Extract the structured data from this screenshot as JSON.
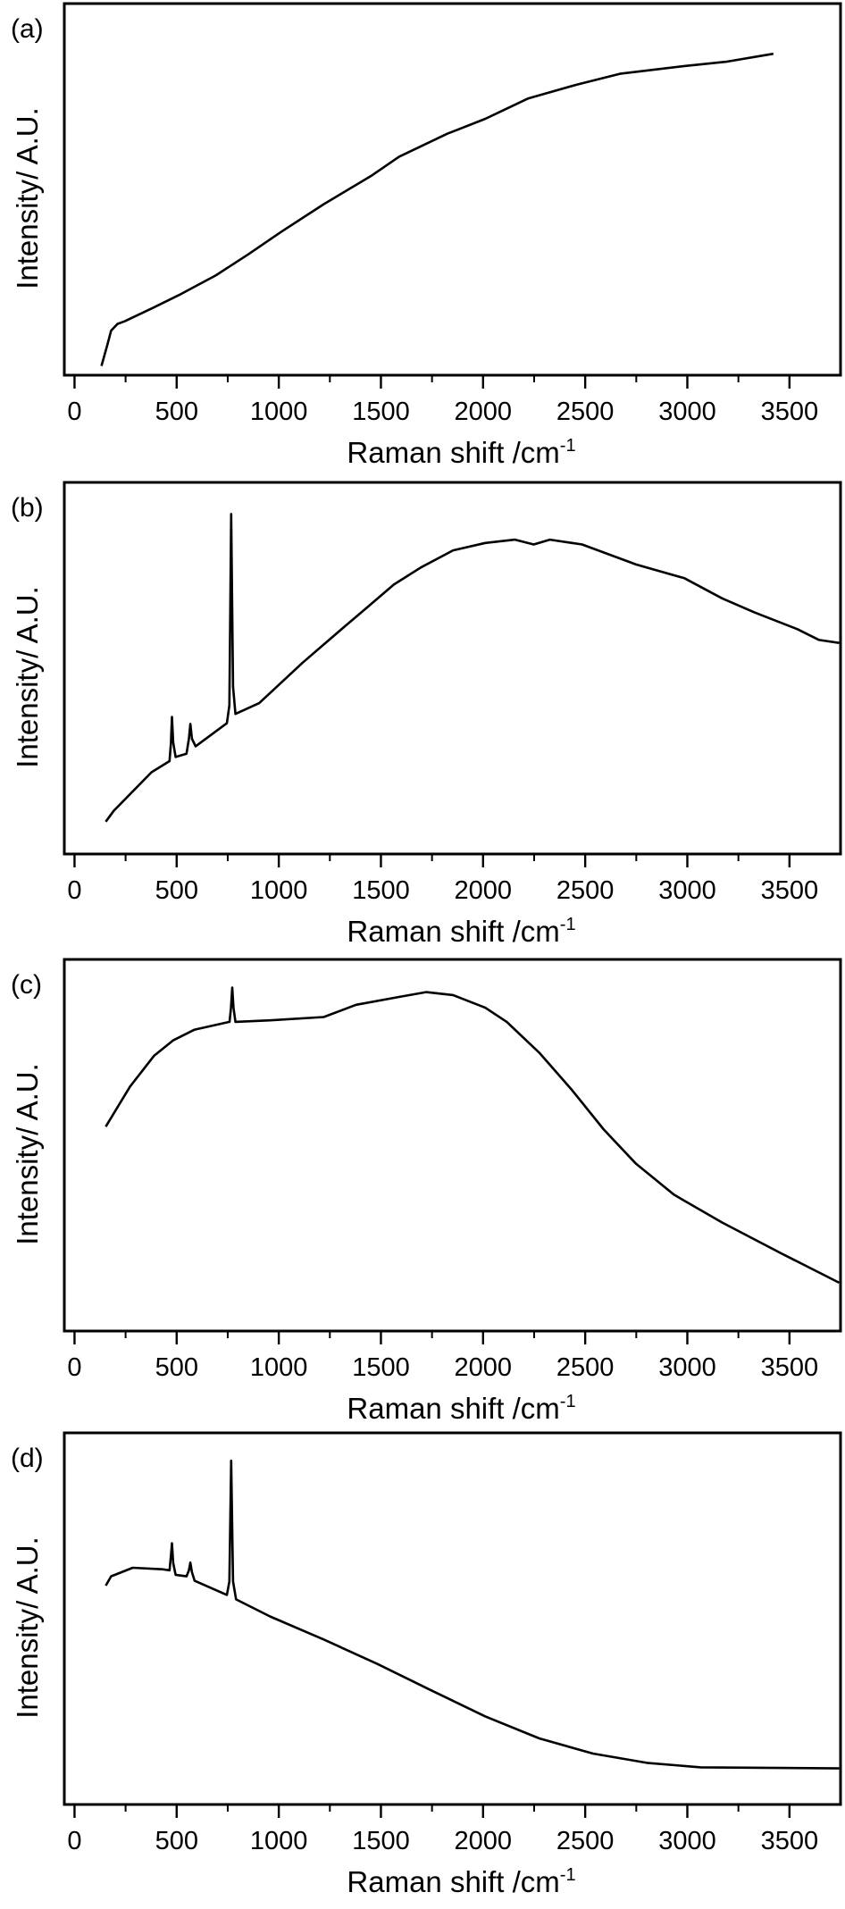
{
  "chart_data": [
    {
      "type": "line",
      "panel_label": "(a)",
      "xlabel": "Raman shift /cm",
      "xlabel_superscript": "-1",
      "ylabel": "Intensity/ A.U.",
      "xlim": [
        -50,
        3750
      ],
      "ylim": [
        0,
        1
      ],
      "xticks": [
        0,
        500,
        1000,
        1500,
        2000,
        2500,
        3000,
        3500
      ],
      "xtick_labels": [
        "0",
        "500",
        "1000",
        "1500",
        "2000",
        "2500",
        "3000",
        "3500"
      ],
      "y_ticks_shown": false,
      "grid": false,
      "line_color": "#000000",
      "x": [
        132,
        160,
        179,
        210,
        245,
        380,
        509,
        693,
        850,
        1010,
        1220,
        1457,
        1589,
        1826,
        2011,
        2222,
        2459,
        2670,
        2986,
        3197,
        3421
      ],
      "y": [
        0.025,
        0.08,
        0.12,
        0.138,
        0.145,
        0.18,
        0.215,
        0.269,
        0.325,
        0.385,
        0.46,
        0.538,
        0.588,
        0.65,
        0.69,
        0.745,
        0.782,
        0.811,
        0.832,
        0.844,
        0.865
      ]
    },
    {
      "type": "line",
      "panel_label": "(b)",
      "xlabel": "Raman shift /cm",
      "xlabel_superscript": "-1",
      "ylabel": "Intensity/ A.U.",
      "xlim": [
        -50,
        3750
      ],
      "ylim": [
        0,
        1
      ],
      "xticks": [
        0,
        500,
        1000,
        1500,
        2000,
        2500,
        3000,
        3500
      ],
      "xtick_labels": [
        "0",
        "500",
        "1000",
        "1500",
        "2000",
        "2500",
        "3000",
        "3500"
      ],
      "y_ticks_shown": false,
      "grid": false,
      "line_color": "#000000",
      "x": [
        153,
        192,
        377,
        465,
        472,
        477,
        483,
        495,
        548,
        560,
        567,
        575,
        593,
        746,
        758,
        767,
        776,
        788,
        904,
        1115,
        1326,
        1431,
        1563,
        1695,
        1853,
        2011,
        2156,
        2248,
        2327,
        2485,
        2749,
        2986,
        3170,
        3329,
        3539,
        3645,
        3743
      ],
      "y": [
        0.087,
        0.116,
        0.22,
        0.25,
        0.3,
        0.369,
        0.3,
        0.261,
        0.27,
        0.31,
        0.35,
        0.31,
        0.29,
        0.352,
        0.4,
        0.915,
        0.45,
        0.377,
        0.406,
        0.514,
        0.614,
        0.663,
        0.725,
        0.771,
        0.817,
        0.837,
        0.846,
        0.833,
        0.846,
        0.833,
        0.779,
        0.742,
        0.688,
        0.65,
        0.605,
        0.576,
        0.568
      ]
    },
    {
      "type": "line",
      "panel_label": "(c)",
      "xlabel": "Raman shift /cm",
      "xlabel_superscript": "-1",
      "ylabel": "Intensity/ A.U.",
      "xlim": [
        -50,
        3750
      ],
      "ylim": [
        0,
        1
      ],
      "xticks": [
        0,
        500,
        1000,
        1500,
        2000,
        2500,
        3000,
        3500
      ],
      "xtick_labels": [
        "0",
        "500",
        "1000",
        "1500",
        "2000",
        "2500",
        "3000",
        "3500"
      ],
      "y_ticks_shown": false,
      "grid": false,
      "line_color": "#000000",
      "x": [
        153,
        272,
        390,
        482,
        588,
        759,
        766,
        772,
        778,
        788,
        957,
        1220,
        1378,
        1589,
        1721,
        1853,
        2011,
        2116,
        2275,
        2433,
        2591,
        2749,
        2934,
        3170,
        3460,
        3743
      ],
      "y": [
        0.55,
        0.658,
        0.741,
        0.782,
        0.811,
        0.832,
        0.87,
        0.924,
        0.87,
        0.832,
        0.836,
        0.845,
        0.878,
        0.899,
        0.912,
        0.904,
        0.87,
        0.832,
        0.749,
        0.65,
        0.542,
        0.45,
        0.367,
        0.292,
        0.209,
        0.13
      ]
    },
    {
      "type": "line",
      "panel_label": "(d)",
      "xlabel": "Raman shift /cm",
      "xlabel_superscript": "-1",
      "ylabel": "Intensity/ A.U.",
      "xlim": [
        -50,
        3750
      ],
      "ylim": [
        0,
        1
      ],
      "xticks": [
        0,
        500,
        1000,
        1500,
        2000,
        2500,
        3000,
        3500
      ],
      "xtick_labels": [
        "0",
        "500",
        "1000",
        "1500",
        "2000",
        "2500",
        "3000",
        "3500"
      ],
      "y_ticks_shown": false,
      "grid": false,
      "line_color": "#000000",
      "x": [
        153,
        179,
        285,
        430,
        465,
        472,
        477,
        483,
        495,
        548,
        560,
        567,
        575,
        588,
        746,
        758,
        767,
        776,
        791,
        957,
        1220,
        1484,
        1747,
        2011,
        2275,
        2538,
        2802,
        3065,
        3743
      ],
      "y": [
        0.589,
        0.614,
        0.637,
        0.633,
        0.63,
        0.67,
        0.703,
        0.65,
        0.618,
        0.614,
        0.63,
        0.651,
        0.625,
        0.602,
        0.564,
        0.6,
        0.925,
        0.6,
        0.552,
        0.506,
        0.444,
        0.378,
        0.307,
        0.237,
        0.178,
        0.137,
        0.112,
        0.1,
        0.097
      ]
    }
  ]
}
